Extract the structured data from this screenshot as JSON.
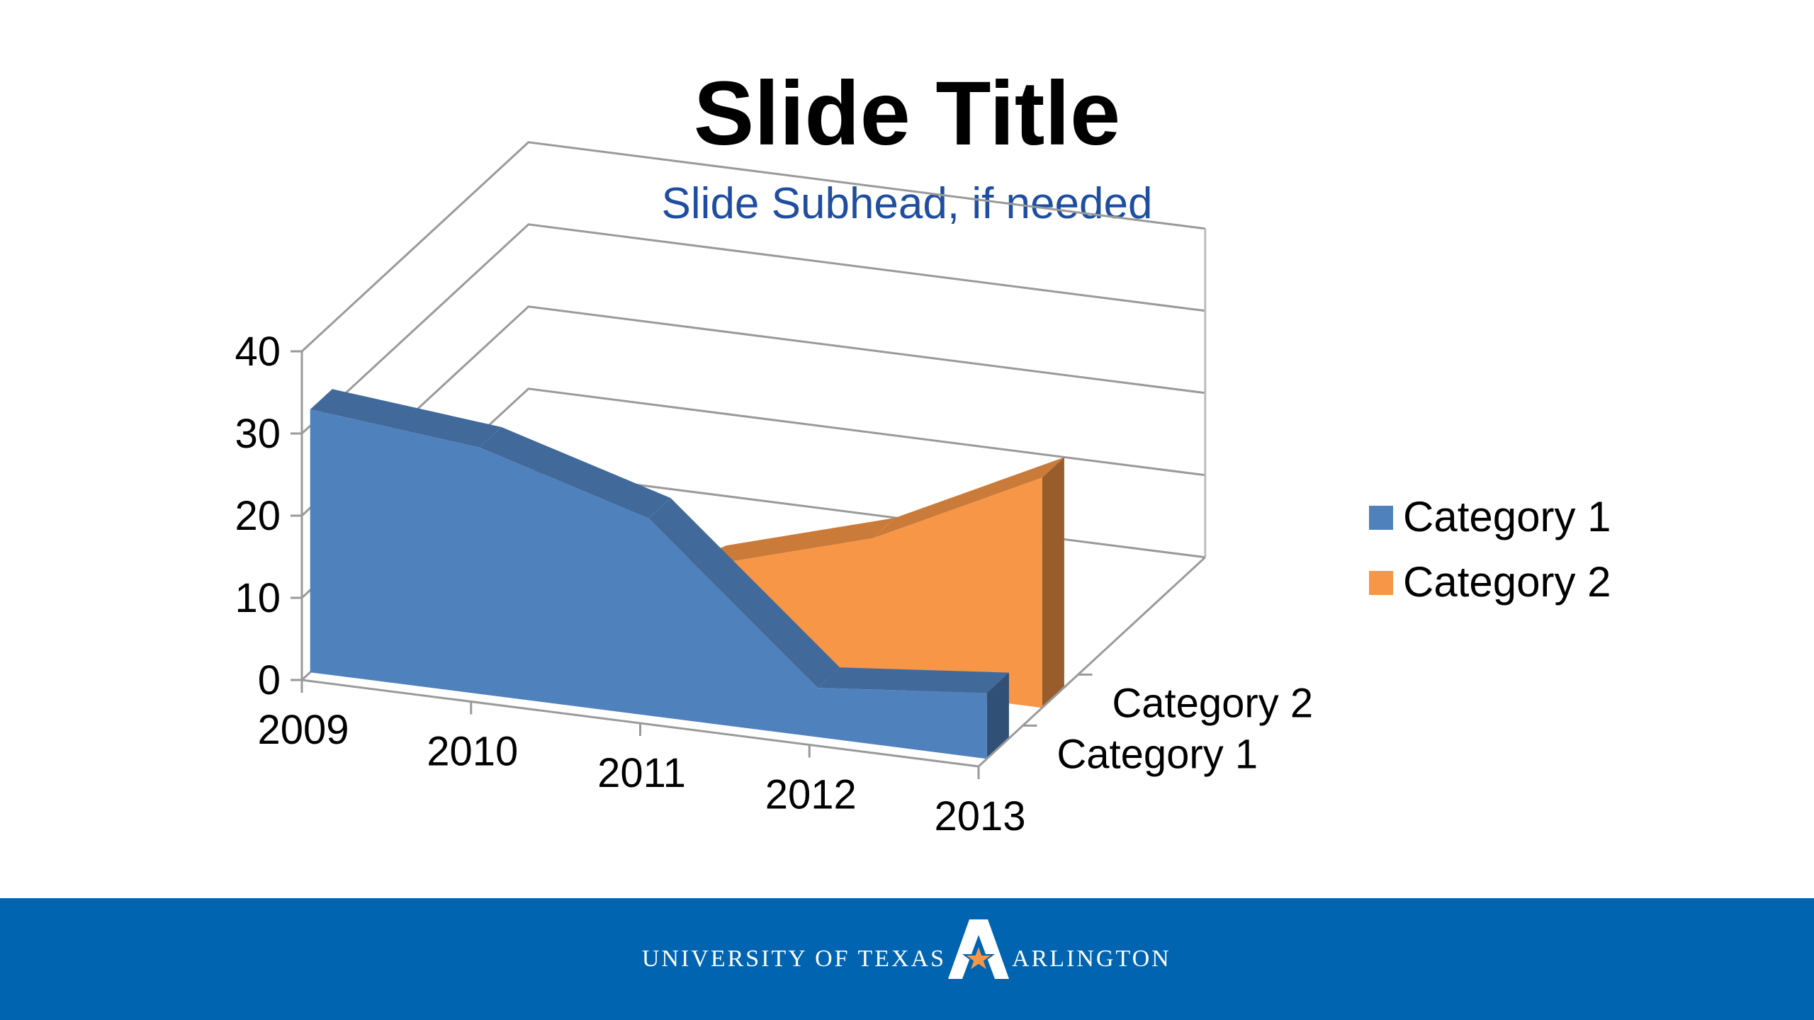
{
  "slide": {
    "title": "Slide Title",
    "subhead": "Slide Subhead, if needed"
  },
  "colors": {
    "category1": "#4f81bd",
    "category2": "#f79646",
    "subhead": "#1f4ea0",
    "footer": "#0064b1"
  },
  "footer": {
    "brand_left": "UNIVERSITY OF TEXAS",
    "brand_right": "ARLINGTON",
    "logo_icon": "uta-a-star-logo-icon"
  },
  "chart_data": {
    "type": "area",
    "variant": "3d-area",
    "categories": [
      "2009",
      "2010",
      "2011",
      "2012",
      "2013"
    ],
    "series": [
      {
        "name": "Category 1",
        "values": [
          32,
          30,
          24,
          6,
          8
        ],
        "color": "#4f81bd"
      },
      {
        "name": "Category 2",
        "values": [
          0,
          0,
          12,
          18,
          28
        ],
        "color": "#f79646"
      }
    ],
    "depth_labels": [
      "Category 1",
      "Category 2"
    ],
    "ylim": [
      0,
      40
    ],
    "yticks": [
      0,
      10,
      20,
      30,
      40
    ],
    "ytick_labels": [
      "0",
      "10",
      "20",
      "30",
      "40"
    ],
    "grid": true,
    "legend": {
      "position": "right",
      "entries": [
        "Category 1",
        "Category 2"
      ]
    }
  }
}
